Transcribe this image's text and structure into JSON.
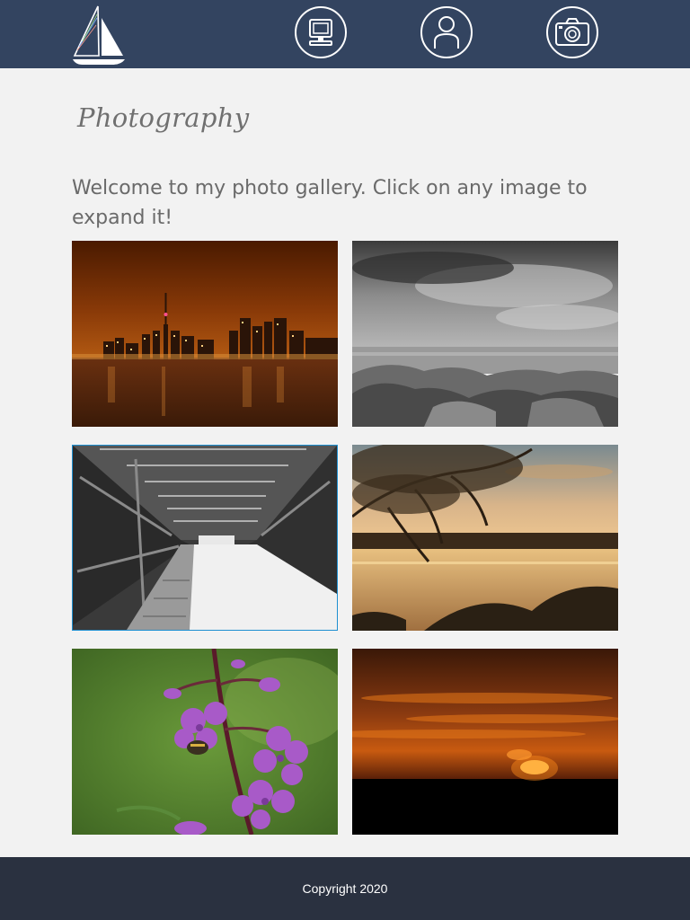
{
  "nav": {
    "icons": [
      "sailboat-logo-icon",
      "computer-icon",
      "user-icon",
      "camera-icon"
    ]
  },
  "page": {
    "title": "Photography",
    "intro": "Welcome to my photo gallery. Click on any image to expand it!"
  },
  "gallery": {
    "photos": [
      {
        "name": "city-skyline-night-photo",
        "selected": false
      },
      {
        "name": "stormy-sea-rocks-photo",
        "selected": false
      },
      {
        "name": "covered-bridge-photo",
        "selected": true
      },
      {
        "name": "lake-sunset-tree-photo",
        "selected": false
      },
      {
        "name": "purple-fireweed-bee-photo",
        "selected": false
      },
      {
        "name": "orange-sunset-photo",
        "selected": false
      }
    ]
  },
  "footer": {
    "copyright": "Copyright 2020"
  },
  "colors": {
    "header_bg": "#334460",
    "footer_bg": "#2a3140",
    "page_bg": "#f2f2f2",
    "selection_border": "#1e8fd0"
  }
}
